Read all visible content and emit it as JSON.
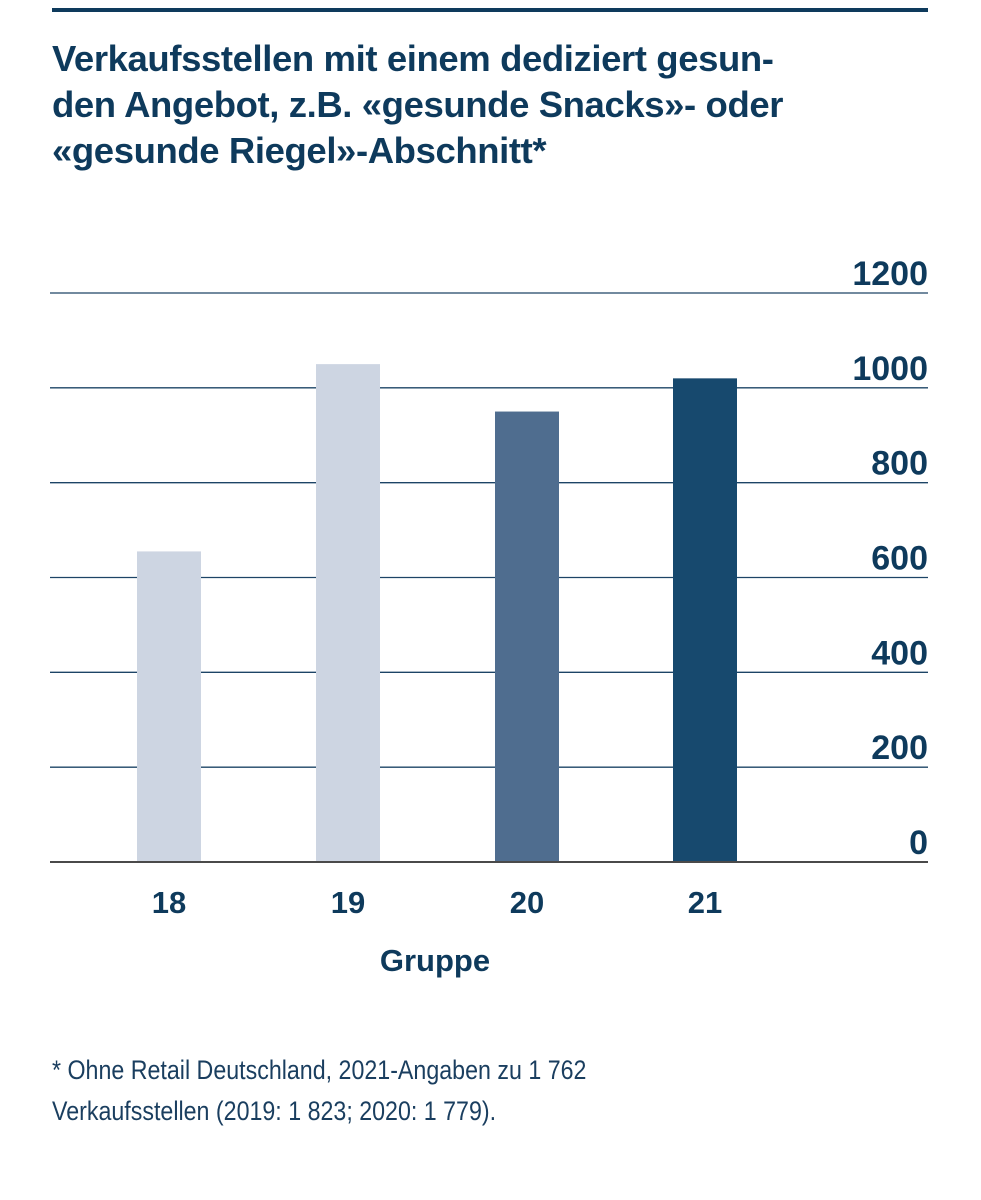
{
  "chart_data": {
    "type": "bar",
    "title": "Verkaufsstellen mit einem dediziert gesun-den Angebot, z.B. «gesunde Snacks»- oder «gesunde Riegel»-Abschnitt*",
    "title_lines": [
      "Verkaufsstellen mit einem dediziert gesun-",
      "den Angebot, z.B. «gesunde Snacks»- oder",
      "«gesunde Riegel»-Abschnitt*"
    ],
    "categories": [
      "18",
      "19",
      "20",
      "21"
    ],
    "values": [
      655,
      1050,
      950,
      1020
    ],
    "bar_colors": [
      "#cdd5e2",
      "#cdd5e2",
      "#4f6d8f",
      "#17496e"
    ],
    "xlabel": "Gruppe",
    "ylabel": "",
    "ylim": [
      0,
      1200
    ],
    "yticks": [
      0,
      200,
      400,
      600,
      800,
      1000,
      1200
    ],
    "y_axis_side": "right",
    "grid": true,
    "legend": "none"
  },
  "footnote": {
    "line1": "* Ohne Retail Deutschland, 2021-Angaben zu 1 762",
    "line2": "Verkaufsstellen (2019: 1 823; 2020: 1 779)."
  },
  "colors": {
    "text": "#0e3a5c",
    "gridline": "#1d4466"
  }
}
